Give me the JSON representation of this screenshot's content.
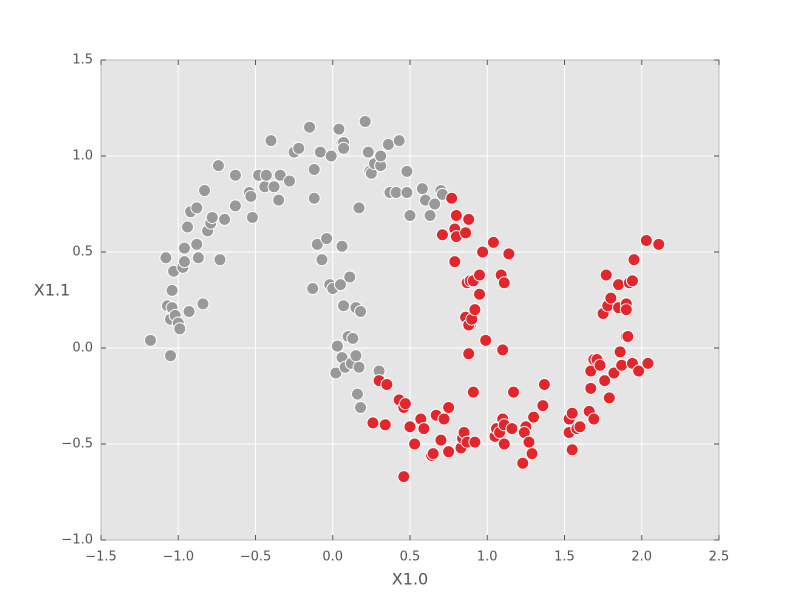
{
  "chart_data": {
    "type": "scatter",
    "xlabel": "X1.0",
    "ylabel": "X1.1",
    "xlim": [
      -1.5,
      2.5
    ],
    "ylim": [
      -1.0,
      1.5
    ],
    "xticks": [
      {
        "value": -1.5,
        "label": "−1.5"
      },
      {
        "value": -1.0,
        "label": "−1.0"
      },
      {
        "value": -0.5,
        "label": "−0.5"
      },
      {
        "value": 0,
        "label": "0.0"
      },
      {
        "value": 0.5,
        "label": "0.5"
      },
      {
        "value": 1,
        "label": "1.0"
      },
      {
        "value": 1.5,
        "label": "1.5"
      },
      {
        "value": 2,
        "label": "2.0"
      },
      {
        "value": 2.5,
        "label": "2.5"
      }
    ],
    "yticks": [
      {
        "value": -1.0,
        "label": "−1.0"
      },
      {
        "value": -0.5,
        "label": "−0.5"
      },
      {
        "value": 0,
        "label": "0.0"
      },
      {
        "value": 0.5,
        "label": "0.5"
      },
      {
        "value": 1,
        "label": "1.0"
      },
      {
        "value": 1.5,
        "label": "1.5"
      }
    ],
    "grid": true,
    "series": [
      {
        "color": "#999999",
        "x": [
          -1.18,
          -1.05,
          -1.07,
          -1.04,
          -1.05,
          -1.02,
          -1.0,
          -0.99,
          -1.04,
          -1.03,
          -1.08,
          -0.93,
          -0.84,
          -0.97,
          -0.96,
          -0.87,
          -0.96,
          -0.88,
          -0.81,
          -0.79,
          -0.78,
          -0.73,
          -0.7,
          -0.94,
          -0.92,
          -0.88,
          -0.83,
          -0.74,
          -0.63,
          -0.63,
          -0.54,
          -0.52,
          -0.53,
          -0.48,
          -0.44,
          -0.43,
          -0.4,
          -0.38,
          -0.35,
          -0.34,
          -0.28,
          -0.25,
          -0.22,
          -0.15,
          -0.12,
          -0.12,
          -0.08,
          -0.1,
          -0.13,
          -0.07,
          -0.04,
          -0.02,
          0.0,
          -0.01,
          0.04,
          0.06,
          0.07,
          0.07,
          0.05,
          0.06,
          0.07,
          0.11,
          0.1,
          0.13,
          0.15,
          0.18,
          0.03,
          0.06,
          0.02,
          0.08,
          0.12,
          0.15,
          0.17,
          0.16,
          0.18,
          0.3,
          0.17,
          0.21,
          0.23,
          0.24,
          0.25,
          0.27,
          0.31,
          0.31,
          0.36,
          0.37,
          0.41,
          0.43,
          0.48,
          0.48,
          0.5,
          0.58,
          0.6,
          0.63,
          0.66,
          0.7,
          0.71
        ],
        "values": [
          0.04,
          -0.04,
          0.22,
          0.21,
          0.15,
          0.17,
          0.13,
          0.1,
          0.3,
          0.4,
          0.47,
          0.19,
          0.23,
          0.42,
          0.45,
          0.47,
          0.52,
          0.54,
          0.61,
          0.65,
          0.68,
          0.46,
          0.67,
          0.63,
          0.71,
          0.73,
          0.82,
          0.95,
          0.74,
          0.9,
          0.81,
          0.68,
          0.79,
          0.9,
          0.84,
          0.9,
          1.08,
          0.84,
          0.77,
          0.9,
          0.87,
          1.02,
          1.04,
          1.15,
          0.93,
          0.78,
          1.02,
          0.54,
          0.31,
          0.46,
          0.57,
          0.33,
          0.31,
          1.0,
          1.14,
          1.07,
          1.07,
          1.04,
          0.33,
          0.53,
          0.22,
          0.37,
          0.06,
          0.05,
          0.21,
          0.19,
          0.01,
          -0.05,
          -0.13,
          -0.1,
          -0.08,
          -0.04,
          -0.1,
          -0.24,
          -0.31,
          -0.12,
          0.73,
          1.18,
          1.02,
          0.92,
          0.91,
          0.96,
          0.95,
          1.0,
          1.06,
          0.81,
          0.81,
          1.08,
          0.81,
          0.92,
          0.69,
          0.83,
          0.77,
          0.69,
          0.75,
          0.82,
          0.8
        ]
      },
      {
        "color": "#e3262b",
        "x": [
          0.26,
          0.3,
          0.35,
          0.34,
          0.43,
          0.46,
          0.47,
          0.46,
          0.5,
          0.53,
          0.57,
          0.59,
          0.64,
          0.65,
          0.67,
          0.7,
          0.72,
          0.75,
          0.75,
          0.83,
          0.84,
          0.85,
          0.87,
          0.91,
          0.92,
          1.05,
          1.06,
          1.08,
          1.1,
          1.11,
          1.11,
          1.16,
          1.17,
          1.23,
          1.25,
          1.24,
          1.27,
          1.29,
          1.3,
          1.36,
          1.37,
          1.53,
          1.53,
          1.55,
          1.55,
          1.58,
          1.6,
          1.66,
          1.69,
          1.67,
          1.67,
          1.69,
          1.71,
          1.73,
          1.76,
          1.79,
          1.82,
          1.86,
          1.87,
          1.9,
          1.91,
          1.94,
          1.98,
          2.04,
          1.75,
          1.78,
          1.8,
          1.77,
          1.85,
          1.85,
          1.9,
          1.9,
          1.92,
          1.94,
          1.95,
          2.03,
          2.11,
          0.71,
          0.77,
          0.79,
          0.8,
          0.8,
          0.79,
          0.86,
          0.88,
          0.87,
          0.89,
          0.91,
          0.86,
          0.89,
          0.88,
          0.9,
          0.92,
          0.88,
          0.95,
          0.95,
          0.97,
          0.99,
          1.04,
          1.09,
          1.11,
          1.14,
          1.1
        ],
        "values": [
          -0.39,
          -0.17,
          -0.19,
          -0.4,
          -0.27,
          -0.31,
          -0.29,
          -0.67,
          -0.41,
          -0.5,
          -0.37,
          -0.42,
          -0.56,
          -0.55,
          -0.35,
          -0.48,
          -0.37,
          -0.31,
          -0.54,
          -0.52,
          -0.47,
          -0.44,
          -0.49,
          -0.23,
          -0.49,
          -0.46,
          -0.42,
          -0.44,
          -0.37,
          -0.4,
          -0.5,
          -0.42,
          -0.23,
          -0.6,
          -0.41,
          -0.44,
          -0.49,
          -0.55,
          -0.36,
          -0.3,
          -0.19,
          -0.37,
          -0.44,
          -0.34,
          -0.53,
          -0.42,
          -0.41,
          -0.33,
          -0.37,
          -0.21,
          -0.12,
          -0.06,
          -0.06,
          -0.09,
          -0.17,
          -0.26,
          -0.13,
          -0.02,
          -0.09,
          0.06,
          0.06,
          -0.08,
          -0.12,
          -0.08,
          0.18,
          0.22,
          0.26,
          0.38,
          0.33,
          0.21,
          0.23,
          0.2,
          0.34,
          0.35,
          0.46,
          0.56,
          0.54,
          0.59,
          0.78,
          0.62,
          0.58,
          0.69,
          0.45,
          0.6,
          0.67,
          0.34,
          0.35,
          0.35,
          0.16,
          0.12,
          0.12,
          0.15,
          0.2,
          -0.03,
          0.28,
          0.38,
          0.5,
          0.04,
          0.55,
          0.38,
          0.34,
          0.49,
          -0.01
        ]
      }
    ]
  }
}
